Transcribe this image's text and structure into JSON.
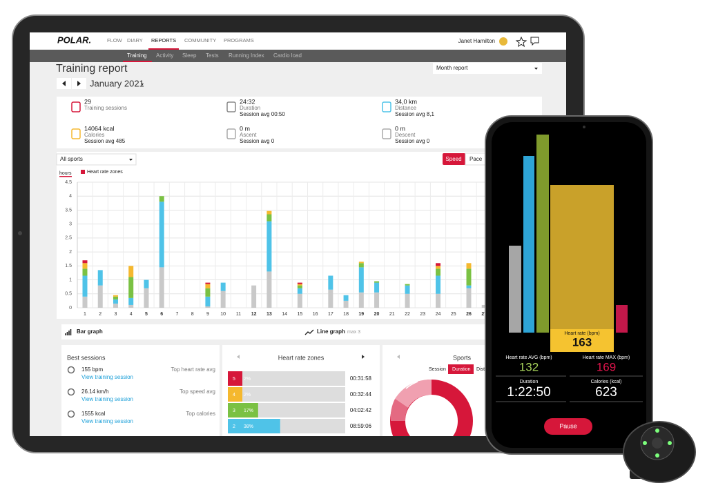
{
  "nav": {
    "logo": "POLAR.",
    "items": [
      "FLOW",
      "DIARY",
      "REPORTS",
      "COMMUNITY",
      "PROGRAMS"
    ],
    "user": "Janet Hamilton"
  },
  "subnav": [
    "Training",
    "Activity",
    "Sleep",
    "Tests",
    "Running Index",
    "Cardio load"
  ],
  "header": {
    "title": "Training report",
    "period": "January 2021",
    "report_type": "Month report"
  },
  "summary": [
    {
      "value": "29",
      "label": "Training sessions"
    },
    {
      "value": "24:32",
      "label": "Duration",
      "avg": "Session avg 00:50"
    },
    {
      "value": "34,0 km",
      "label": "Distance",
      "avg": "Session avg 8,1"
    },
    {
      "value": "14064 kcal",
      "label": "Calories",
      "avg": "Session avg 485"
    },
    {
      "value": "0 m",
      "label": "Ascent",
      "avg": "Session avg 0"
    },
    {
      "value": "0 m",
      "label": "Descent",
      "avg": "Session avg 0"
    }
  ],
  "filters": {
    "sport": "All sports",
    "speed": "Speed",
    "pace": "Pace",
    "unit": "hours",
    "legend": "Heart rate zones"
  },
  "chart_data": {
    "type": "bar",
    "stacked": true,
    "categories": [
      "1",
      "2",
      "3",
      "4",
      "5",
      "6",
      "7",
      "8",
      "9",
      "10",
      "11",
      "12",
      "13",
      "14",
      "15",
      "16",
      "17",
      "18",
      "19",
      "20",
      "21",
      "22",
      "23",
      "24",
      "25",
      "26",
      "27"
    ],
    "series": [
      {
        "color": "#c9c9c9",
        "values": [
          0.4,
          0.8,
          0.15,
          0.1,
          0.7,
          1.45,
          0,
          0,
          0.05,
          0.6,
          0,
          0.8,
          1.3,
          0,
          0.5,
          0,
          0.65,
          0.25,
          0.55,
          0.55,
          0,
          0.5,
          0,
          0.5,
          0,
          0.7,
          0.1
        ]
      },
      {
        "color": "#4fc3e8",
        "values": [
          0.75,
          0.55,
          0.15,
          0.25,
          0.3,
          2.35,
          0,
          0,
          0.35,
          0.3,
          0,
          0,
          1.8,
          0,
          0.2,
          0,
          0.5,
          0.2,
          0.9,
          0.35,
          0,
          0.3,
          0,
          0.65,
          0,
          0.1,
          0
        ]
      },
      {
        "color": "#7ac143",
        "values": [
          0.25,
          0,
          0.1,
          0.75,
          0,
          0.2,
          0,
          0,
          0.3,
          0,
          0,
          0,
          0.25,
          0,
          0.1,
          0,
          0,
          0,
          0.15,
          0.05,
          0,
          0.05,
          0,
          0.25,
          0,
          0.6,
          0
        ]
      },
      {
        "color": "#f5b82e",
        "values": [
          0.2,
          0,
          0.05,
          0.4,
          0,
          0,
          0,
          0,
          0.15,
          0,
          0,
          0,
          0.12,
          0,
          0.05,
          0,
          0,
          0,
          0.05,
          0,
          0,
          0,
          0,
          0.1,
          0,
          0.2,
          0
        ]
      },
      {
        "color": "#d6173a",
        "values": [
          0.1,
          0,
          0,
          0,
          0,
          0,
          0,
          0,
          0.05,
          0,
          0,
          0,
          0,
          0,
          0.05,
          0,
          0,
          0,
          0,
          0,
          0,
          0,
          0,
          0.1,
          0,
          0,
          0
        ]
      }
    ],
    "ylim": [
      0,
      4.5
    ],
    "yticks": [
      0,
      0.5,
      1,
      1.5,
      2,
      2.5,
      3,
      3.5,
      4,
      4.5
    ],
    "grid": true
  },
  "graph_toggle": {
    "bar": "Bar graph",
    "line": "Line graph",
    "max": "max 3"
  },
  "best_sessions": {
    "title": "Best sessions",
    "items": [
      {
        "value": "155 bpm",
        "link": "View training session",
        "label": "Top heart rate avg"
      },
      {
        "value": "26.14 km/h",
        "link": "View training session",
        "label": "Top speed avg"
      },
      {
        "value": "1555 kcal",
        "link": "View training session",
        "label": "Top calories"
      }
    ]
  },
  "hr_zones": {
    "title": "Heart rate zones",
    "zones": [
      "5",
      "4",
      "3",
      "2"
    ],
    "values": [
      2,
      2,
      17,
      38
    ],
    "value_labels": [
      "2%",
      "2%",
      "17%",
      "38%"
    ],
    "times": [
      "00:31:58",
      "00:32:44",
      "04:02:42",
      "08:59:06"
    ],
    "colors": [
      "#d6173a",
      "#f5b82e",
      "#7ac143",
      "#4fc3e8"
    ]
  },
  "sports": {
    "title": "Sports",
    "tabs": [
      "Session",
      "Duration",
      "Dist"
    ]
  },
  "phone": {
    "current_label": "Heart rate (bpm)",
    "current": "163",
    "avg_label": "Heart rate AVG (bpm)",
    "avg": "132",
    "max_label": "Heart rate MAX (bpm)",
    "max": "169",
    "duration_label": "Duration",
    "duration": "1:22:50",
    "calories_label": "Calories (kcal)",
    "calories": "623",
    "button": "Pause"
  }
}
